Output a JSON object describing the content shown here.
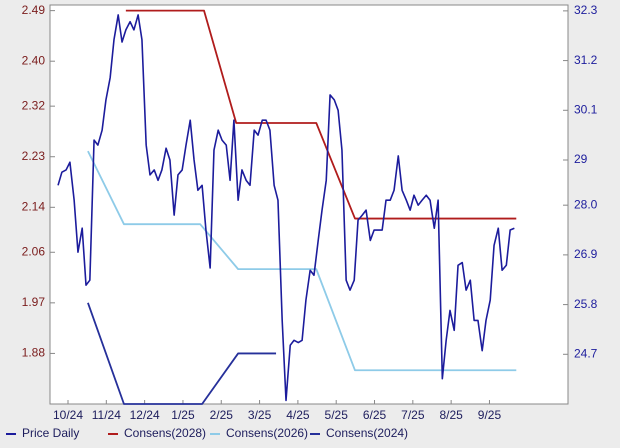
{
  "chart_data": {
    "type": "line",
    "xlim": [
      -0.47,
      13.05
    ],
    "xticks": [
      {
        "value": 0,
        "label": "10/24"
      },
      {
        "value": 1,
        "label": "11/24"
      },
      {
        "value": 2,
        "label": "12/24"
      },
      {
        "value": 3,
        "label": "1/25"
      },
      {
        "value": 4,
        "label": "2/25"
      },
      {
        "value": 5,
        "label": "3/25"
      },
      {
        "value": 6,
        "label": "4/25"
      },
      {
        "value": 7,
        "label": "5/25"
      },
      {
        "value": 8,
        "label": "6/25"
      },
      {
        "value": 9,
        "label": "7/25"
      },
      {
        "value": 10,
        "label": "8/25"
      },
      {
        "value": 11,
        "label": "9/25"
      }
    ],
    "ylim": [
      1.79,
      2.5
    ],
    "yticks": [
      1.88,
      1.97,
      2.06,
      2.14,
      2.23,
      2.32,
      {
        "value": 2.4,
        "label": "2.40"
      },
      2.49
    ],
    "y2lim": [
      23.6,
      32.43
    ],
    "y2ticks": [
      24.7,
      25.8,
      26.9,
      {
        "value": 28,
        "label": "28.0"
      },
      29.0,
      30.1,
      31.2,
      32.3
    ],
    "grid": false,
    "series": [
      {
        "name": "Price Daily",
        "color": "#1c1c9c",
        "axis": "y2",
        "x": [
          -0.26,
          -0.16,
          -0.05,
          0.05,
          0.16,
          0.26,
          0.37,
          0.47,
          0.57,
          0.68,
          0.78,
          0.89,
          0.99,
          1.1,
          1.2,
          1.31,
          1.41,
          1.51,
          1.62,
          1.72,
          1.83,
          1.93,
          2.04,
          2.14,
          2.25,
          2.35,
          2.45,
          2.56,
          2.66,
          2.77,
          2.87,
          2.98,
          3.08,
          3.19,
          3.29,
          3.39,
          3.5,
          3.6,
          3.71,
          3.81,
          3.92,
          4.02,
          4.13,
          4.23,
          4.33,
          4.44,
          4.54,
          4.65,
          4.75,
          4.86,
          4.96,
          5.07,
          5.17,
          5.27,
          5.38,
          5.48,
          5.59,
          5.69,
          5.8,
          5.9,
          6.01,
          6.11,
          6.21,
          6.32,
          6.42,
          6.53,
          6.63,
          6.74,
          6.84,
          6.95,
          7.05,
          7.15,
          7.26,
          7.36,
          7.47,
          7.57,
          7.68,
          7.78,
          7.89,
          7.99,
          8.09,
          8.2,
          8.3,
          8.41,
          8.51,
          8.62,
          8.72,
          8.83,
          8.93,
          9.03,
          9.14,
          9.24,
          9.35,
          9.45,
          9.56,
          9.66,
          9.77,
          9.87,
          9.97,
          10.08,
          10.18,
          10.29,
          10.39,
          10.5,
          10.6,
          10.7,
          10.81,
          10.91,
          11.02,
          11.12,
          11.23,
          11.33,
          11.44,
          11.54,
          11.65
        ],
        "values": [
          28.44,
          28.73,
          28.78,
          28.95,
          28.11,
          26.96,
          27.49,
          26.23,
          26.34,
          29.44,
          29.33,
          29.66,
          30.33,
          30.82,
          31.66,
          32.21,
          31.61,
          31.88,
          32.06,
          31.88,
          32.21,
          31.66,
          29.33,
          28.67,
          28.78,
          28.55,
          28.78,
          29.26,
          29.0,
          27.78,
          28.67,
          28.78,
          29.33,
          29.88,
          29.0,
          28.33,
          28.44,
          27.45,
          26.61,
          29.22,
          29.66,
          29.44,
          29.33,
          28.55,
          29.88,
          28.11,
          28.78,
          28.55,
          28.44,
          29.66,
          29.55,
          29.88,
          29.88,
          29.66,
          28.44,
          28.11,
          25.45,
          23.68,
          24.9,
          25.01,
          24.96,
          25.01,
          25.9,
          26.56,
          26.45,
          27.22,
          27.89,
          28.55,
          30.44,
          30.33,
          30.1,
          29.22,
          26.34,
          26.12,
          26.34,
          27.67,
          27.78,
          27.89,
          27.22,
          27.45,
          27.45,
          27.45,
          28.11,
          28.11,
          28.33,
          29.09,
          28.33,
          28.11,
          27.89,
          28.22,
          28.0,
          28.11,
          28.22,
          28.11,
          27.49,
          28.11,
          24.16,
          25.01,
          25.67,
          25.23,
          26.67,
          26.73,
          26.12,
          26.34,
          25.45,
          25.45,
          24.78,
          25.45,
          25.9,
          27.11,
          27.49,
          26.56,
          26.67,
          27.45,
          27.49
        ]
      },
      {
        "name": "Consens(2028)",
        "color": "#b01c1c",
        "x": [
          1.51,
          3.55,
          4.39,
          6.48,
          7.49,
          11.7
        ],
        "values": [
          2.49,
          2.49,
          2.29,
          2.29,
          2.12,
          2.12
        ]
      },
      {
        "name": "Consens(2026)",
        "color": "#8ecbe8",
        "x": [
          0.52,
          1.46,
          3.45,
          4.44,
          6.48,
          7.49,
          11.7
        ],
        "values": [
          2.24,
          2.11,
          2.11,
          2.03,
          2.03,
          1.85,
          1.85
        ]
      },
      {
        "name": "Consens(2024)",
        "color": "#26309a",
        "x": [
          0.52,
          1.46,
          3.5,
          4.44,
          5.43
        ],
        "values": [
          1.97,
          1.79,
          1.79,
          1.88,
          1.88
        ]
      }
    ]
  }
}
